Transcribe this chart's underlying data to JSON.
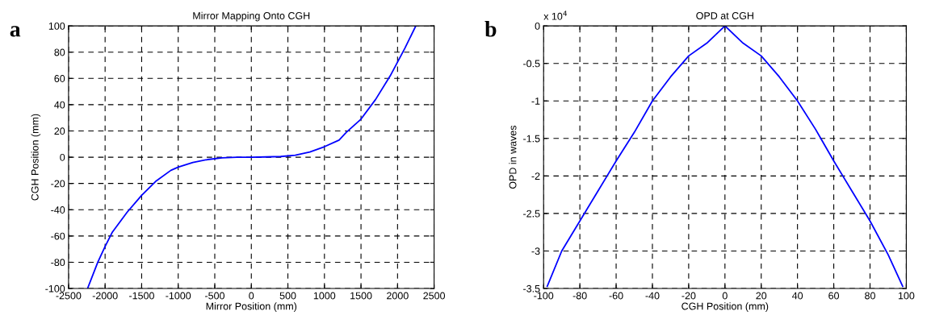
{
  "chart_data": [
    {
      "type": "line",
      "title": "Mirror Mapping Onto CGH",
      "xlabel": "Mirror Position (mm)",
      "ylabel": "CGH Position (mm)",
      "annotations": [
        "a"
      ],
      "series": [
        {
          "color": "#0000ff",
          "x": [
            -2240,
            -2100,
            -2000,
            -1900,
            -1700,
            -1500,
            -1300,
            -1100,
            -1000,
            -800,
            -600,
            -400,
            -200,
            0,
            200,
            400,
            600,
            800,
            1000,
            1200,
            1300,
            1500,
            1700,
            1900,
            2100,
            2250
          ],
          "values": [
            -100,
            -80,
            -68,
            -57,
            -42,
            -29,
            -18,
            -10,
            -7.5,
            -4,
            -1.8,
            -0.5,
            0,
            0,
            0.2,
            0.5,
            1.5,
            4,
            8,
            13,
            19,
            29,
            44,
            62,
            83,
            100
          ]
        }
      ],
      "xlim": [
        -2500,
        2500
      ],
      "xticks": [
        -2500,
        -2000,
        -1500,
        -1000,
        -500,
        0,
        500,
        1000,
        1500,
        2000,
        2500
      ],
      "ylim": [
        -100,
        100
      ],
      "yticks": [
        -100,
        -80,
        -60,
        -40,
        -20,
        0,
        20,
        40,
        60,
        80,
        100
      ],
      "grid": true,
      "legend": false,
      "marker": "none",
      "line_style": "solid"
    },
    {
      "type": "line",
      "title": "OPD at CGH",
      "xlabel": "CGH Position (mm)",
      "ylabel": "OPD in waves",
      "annotations": [
        "b",
        "x 10$^{4}$"
      ],
      "series": [
        {
          "color": "#0000ff",
          "x": [
            -98,
            -90,
            -80,
            -70,
            -65,
            -60,
            -50,
            -40,
            -30,
            -20,
            -10,
            0,
            10,
            20,
            30,
            40,
            50,
            60,
            65,
            70,
            80,
            90,
            98
          ],
          "values": [
            -3.47,
            -3.0,
            -2.6,
            -2.2,
            -2.0,
            -1.8,
            -1.42,
            -1.0,
            -0.68,
            -0.4,
            -0.23,
            0,
            -0.23,
            -0.4,
            -0.68,
            -1.0,
            -1.38,
            -1.8,
            -2.0,
            -2.2,
            -2.6,
            -3.05,
            -3.47
          ]
        }
      ],
      "xlim": [
        -100,
        100
      ],
      "xticks": [
        -100,
        -80,
        -60,
        -40,
        -20,
        0,
        20,
        40,
        60,
        80,
        100
      ],
      "ylim": [
        -3.5,
        0
      ],
      "yticks": [
        -3.5,
        -3,
        -2.5,
        -2,
        -1.5,
        -1,
        -0.5,
        0
      ],
      "grid": true,
      "legend": false,
      "marker": "none",
      "line_style": "solid"
    }
  ]
}
